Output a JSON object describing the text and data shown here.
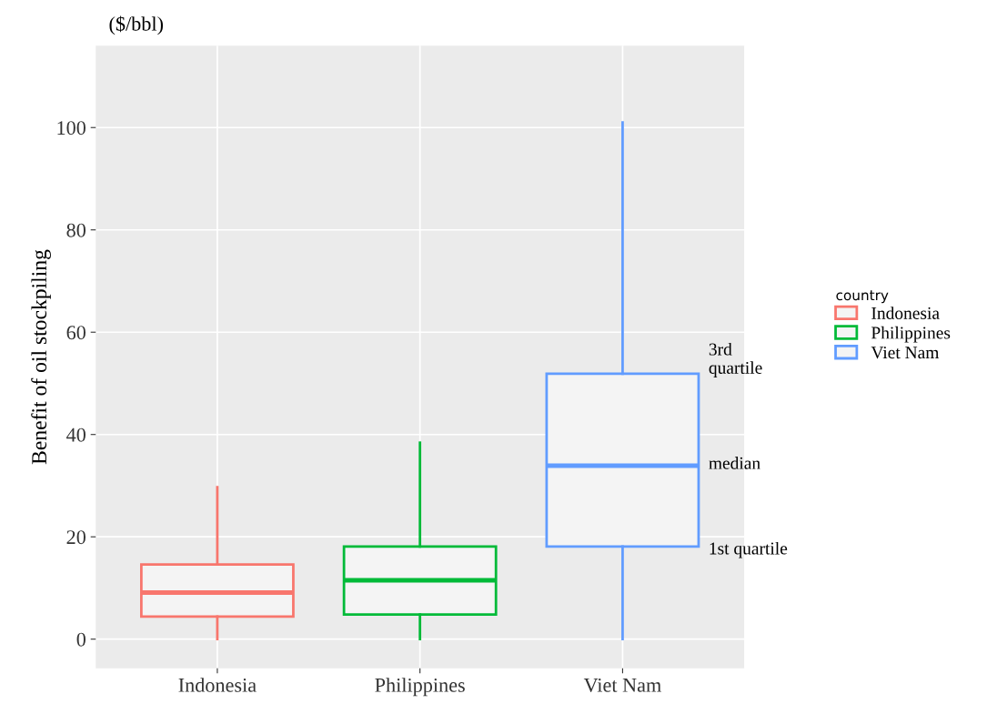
{
  "chart_data": {
    "type": "box",
    "title": "($/bbl)",
    "ylabel": "Benefit of oil stockpiling",
    "legend_title": "country",
    "categories": [
      "Indonesia",
      "Philippines",
      "Viet Nam"
    ],
    "series": [
      {
        "name": "Indonesia",
        "color": "#f8766d",
        "boxes": [
          {
            "low": 0,
            "q1": 4.4,
            "median": 9.1,
            "q3": 14.6,
            "high": 29.7
          },
          null,
          null
        ]
      },
      {
        "name": "Philippines",
        "color": "#00ba38",
        "boxes": [
          null,
          {
            "low": 0,
            "q1": 4.8,
            "median": 11.5,
            "q3": 18.1,
            "high": 38.4
          },
          null
        ]
      },
      {
        "name": "Viet Nam",
        "color": "#619cff",
        "boxes": [
          null,
          null,
          {
            "low": 0,
            "q1": 18.1,
            "median": 33.9,
            "q3": 51.9,
            "high": 101
          }
        ]
      }
    ],
    "ylim": [
      -5.7,
      116
    ],
    "yticks": [
      0,
      20,
      40,
      60,
      80,
      100
    ],
    "grid": true,
    "legend": "right",
    "annotations": [
      "3rd\nquartile",
      "median",
      "1st quartile"
    ]
  }
}
